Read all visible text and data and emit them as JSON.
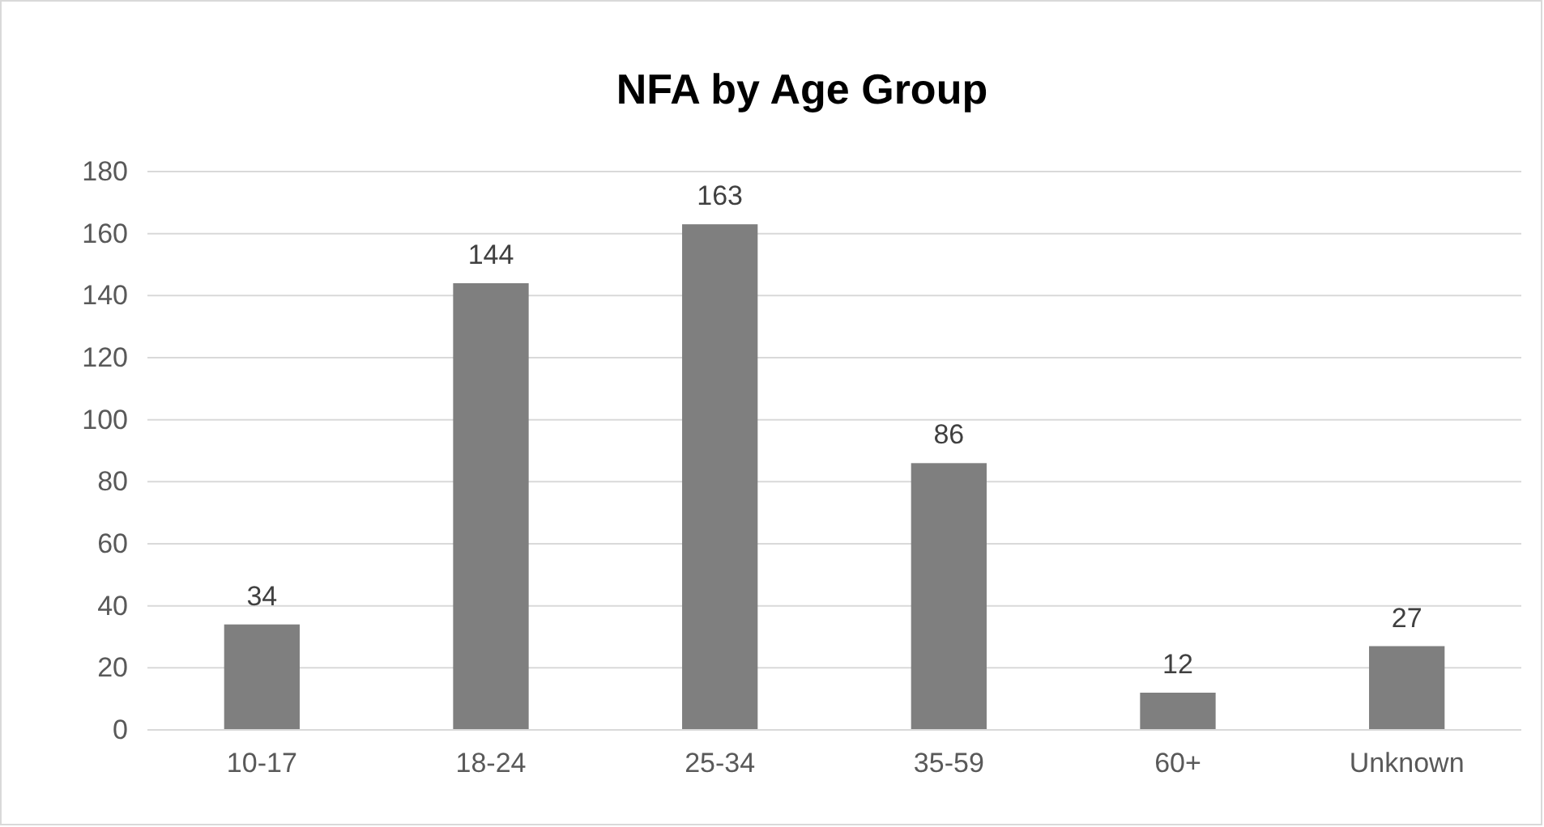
{
  "chart_data": {
    "type": "bar",
    "title": "NFA by Age Group",
    "categories": [
      "10-17",
      "18-24",
      "25-34",
      "35-59",
      "60+",
      "Unknown"
    ],
    "values": [
      34,
      144,
      163,
      86,
      12,
      27
    ],
    "color": "#7f7f7f",
    "ylim": [
      0,
      180
    ],
    "yticks": [
      0,
      20,
      40,
      60,
      80,
      100,
      120,
      140,
      160,
      180
    ],
    "grid": "y",
    "data_labels": true
  }
}
